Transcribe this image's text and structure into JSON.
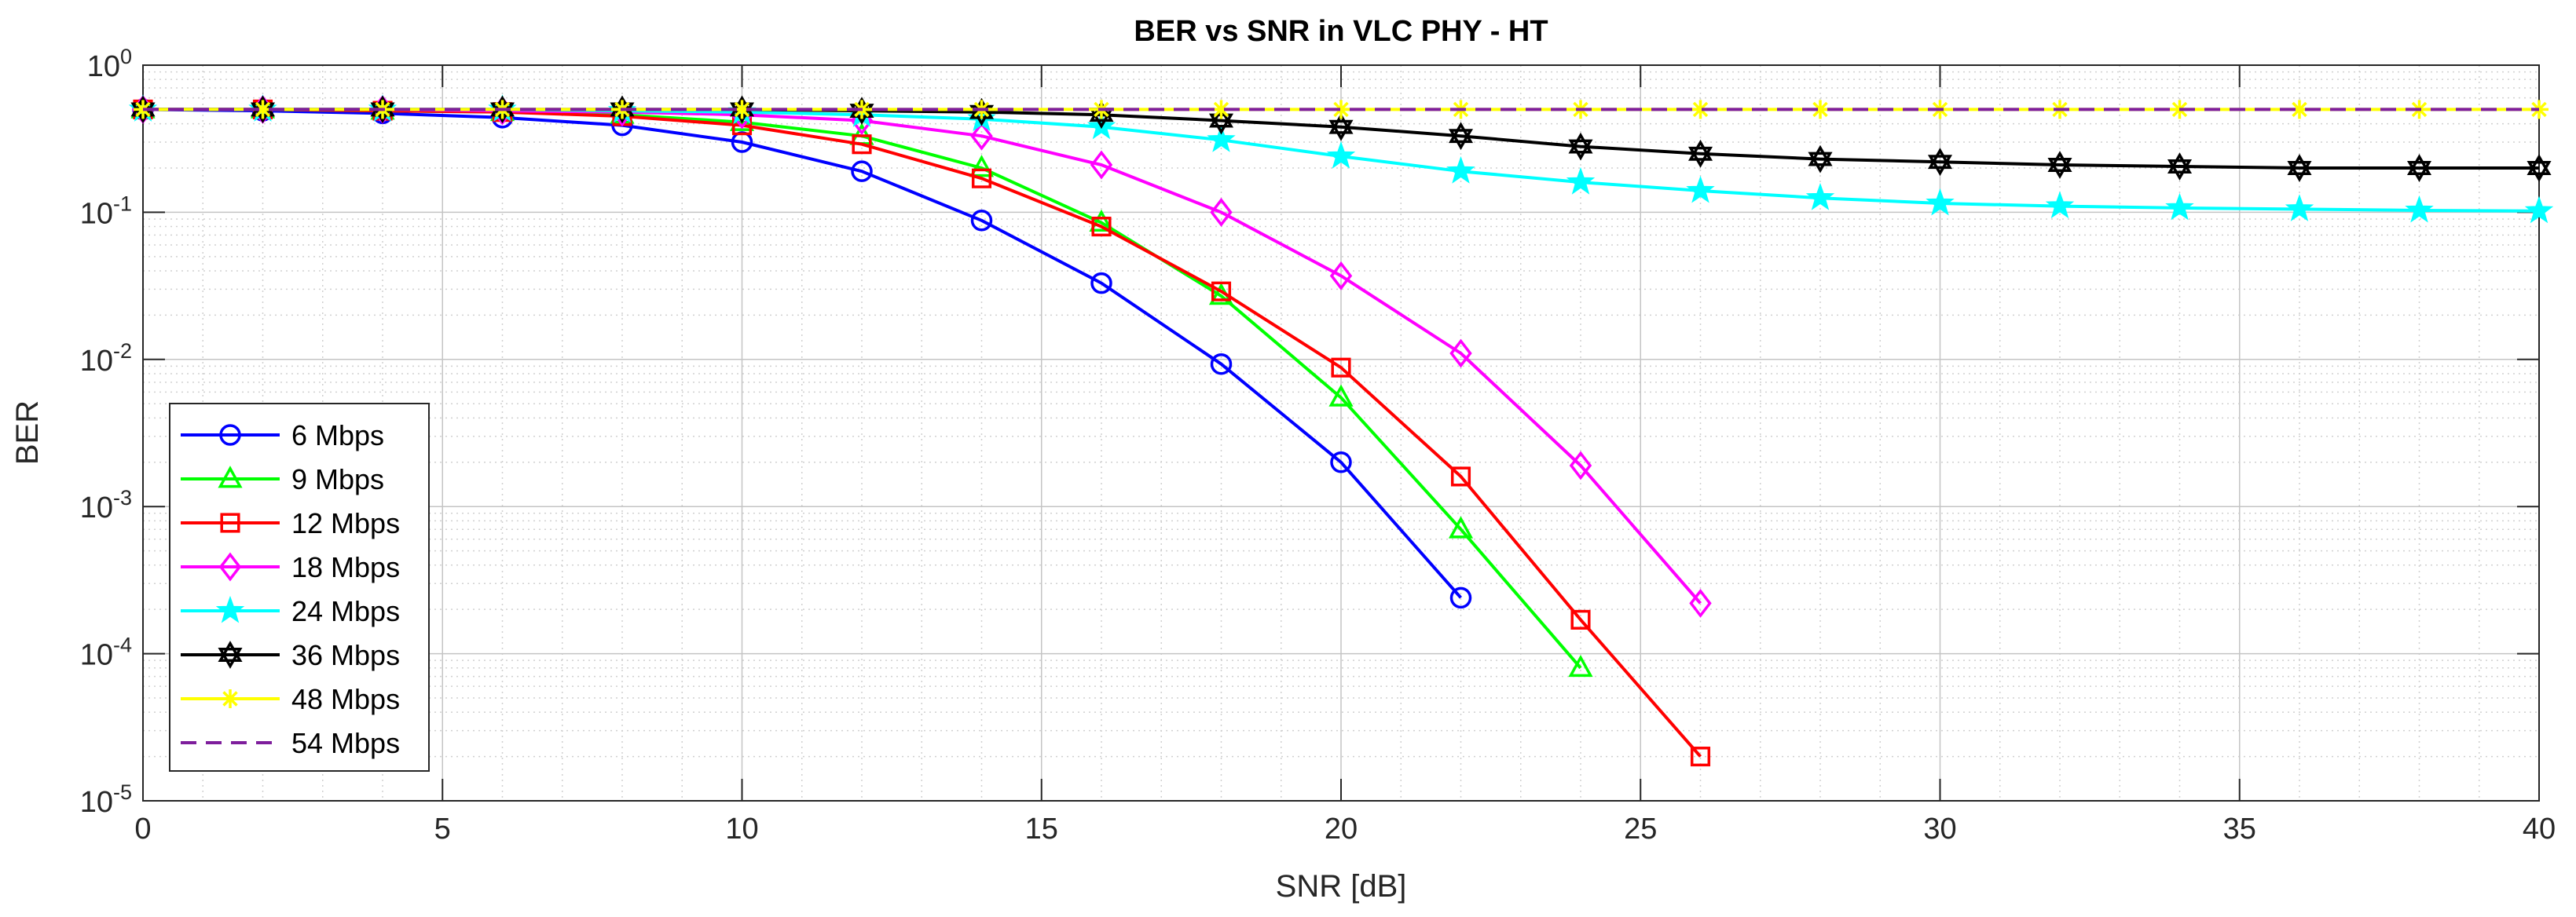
{
  "chart_data": {
    "type": "line",
    "title": "BER vs SNR in VLC PHY - HT",
    "xlabel": "SNR [dB]",
    "ylabel": "BER",
    "xscale": "linear",
    "yscale": "log",
    "xlim": [
      0,
      40
    ],
    "ylim": [
      1e-05,
      1
    ],
    "grid": "major and minor",
    "legend_location": "lower-left",
    "x_ticks": [
      "0",
      "5",
      "10",
      "15",
      "20",
      "25",
      "30",
      "35",
      "40"
    ],
    "y_ticks": [
      {
        "base": "10",
        "exp": "0",
        "value": 1
      },
      {
        "base": "10",
        "exp": "-1",
        "value": 0.1
      },
      {
        "base": "10",
        "exp": "-2",
        "value": 0.01
      },
      {
        "base": "10",
        "exp": "-3",
        "value": 0.001
      },
      {
        "base": "10",
        "exp": "-4",
        "value": 0.0001
      },
      {
        "base": "10",
        "exp": "-5",
        "value": 1e-05
      }
    ],
    "series": [
      {
        "name": "6 Mbps",
        "color": "#0000ff",
        "marker": "circle",
        "line": "solid",
        "x": [
          0,
          2,
          4,
          6,
          8,
          10,
          12,
          14,
          16,
          18,
          20,
          22
        ],
        "y": [
          0.5,
          0.49,
          0.47,
          0.44,
          0.39,
          0.3,
          0.19,
          0.088,
          0.033,
          0.0093,
          0.002,
          0.00024
        ]
      },
      {
        "name": "9 Mbps",
        "color": "#00ff00",
        "marker": "triangle",
        "line": "solid",
        "x": [
          0,
          2,
          4,
          6,
          8,
          10,
          12,
          14,
          16,
          18,
          20,
          22,
          24
        ],
        "y": [
          0.5,
          0.5,
          0.49,
          0.48,
          0.46,
          0.41,
          0.33,
          0.2,
          0.085,
          0.027,
          0.0055,
          0.0007,
          8e-05
        ]
      },
      {
        "name": "12 Mbps",
        "color": "#ff0000",
        "marker": "square",
        "line": "solid",
        "x": [
          0,
          2,
          4,
          6,
          8,
          10,
          12,
          14,
          16,
          18,
          20,
          22,
          24,
          26
        ],
        "y": [
          0.5,
          0.5,
          0.49,
          0.48,
          0.45,
          0.39,
          0.29,
          0.17,
          0.08,
          0.029,
          0.0088,
          0.0016,
          0.00017,
          2e-05
        ]
      },
      {
        "name": "18 Mbps",
        "color": "#ff00ff",
        "marker": "diamond",
        "line": "solid",
        "x": [
          0,
          2,
          4,
          6,
          8,
          10,
          12,
          14,
          16,
          18,
          20,
          22,
          24,
          26
        ],
        "y": [
          0.5,
          0.5,
          0.5,
          0.49,
          0.48,
          0.46,
          0.42,
          0.33,
          0.21,
          0.1,
          0.037,
          0.011,
          0.0019,
          0.00022
        ]
      },
      {
        "name": "24 Mbps",
        "color": "#00ffff",
        "marker": "star",
        "line": "solid",
        "x": [
          0,
          2,
          4,
          6,
          8,
          10,
          12,
          14,
          16,
          18,
          20,
          22,
          24,
          26,
          28,
          30,
          32,
          34,
          36,
          38,
          40
        ],
        "y": [
          0.5,
          0.5,
          0.5,
          0.5,
          0.49,
          0.48,
          0.46,
          0.43,
          0.38,
          0.31,
          0.24,
          0.19,
          0.16,
          0.14,
          0.125,
          0.115,
          0.11,
          0.107,
          0.105,
          0.103,
          0.102
        ]
      },
      {
        "name": "36 Mbps",
        "color": "#000000",
        "marker": "hexagram",
        "line": "solid",
        "x": [
          0,
          2,
          4,
          6,
          8,
          10,
          12,
          14,
          16,
          18,
          20,
          22,
          24,
          26,
          28,
          30,
          32,
          34,
          36,
          38,
          40
        ],
        "y": [
          0.5,
          0.5,
          0.5,
          0.5,
          0.5,
          0.5,
          0.49,
          0.48,
          0.46,
          0.42,
          0.38,
          0.33,
          0.28,
          0.25,
          0.23,
          0.22,
          0.21,
          0.205,
          0.2,
          0.2,
          0.2
        ]
      },
      {
        "name": "48 Mbps",
        "color": "#ffff00",
        "marker": "asterisk",
        "line": "solid",
        "x": [
          0,
          2,
          4,
          6,
          8,
          10,
          12,
          14,
          16,
          18,
          20,
          22,
          24,
          26,
          28,
          30,
          32,
          34,
          36,
          38,
          40
        ],
        "y": [
          0.5,
          0.5,
          0.5,
          0.5,
          0.5,
          0.5,
          0.5,
          0.5,
          0.5,
          0.5,
          0.5,
          0.5,
          0.5,
          0.5,
          0.5,
          0.5,
          0.5,
          0.5,
          0.5,
          0.5,
          0.5
        ]
      },
      {
        "name": "54 Mbps",
        "color": "#7e1e9c",
        "marker": "none",
        "line": "dashed",
        "x": [
          0,
          40
        ],
        "y": [
          0.5,
          0.5
        ]
      }
    ]
  }
}
